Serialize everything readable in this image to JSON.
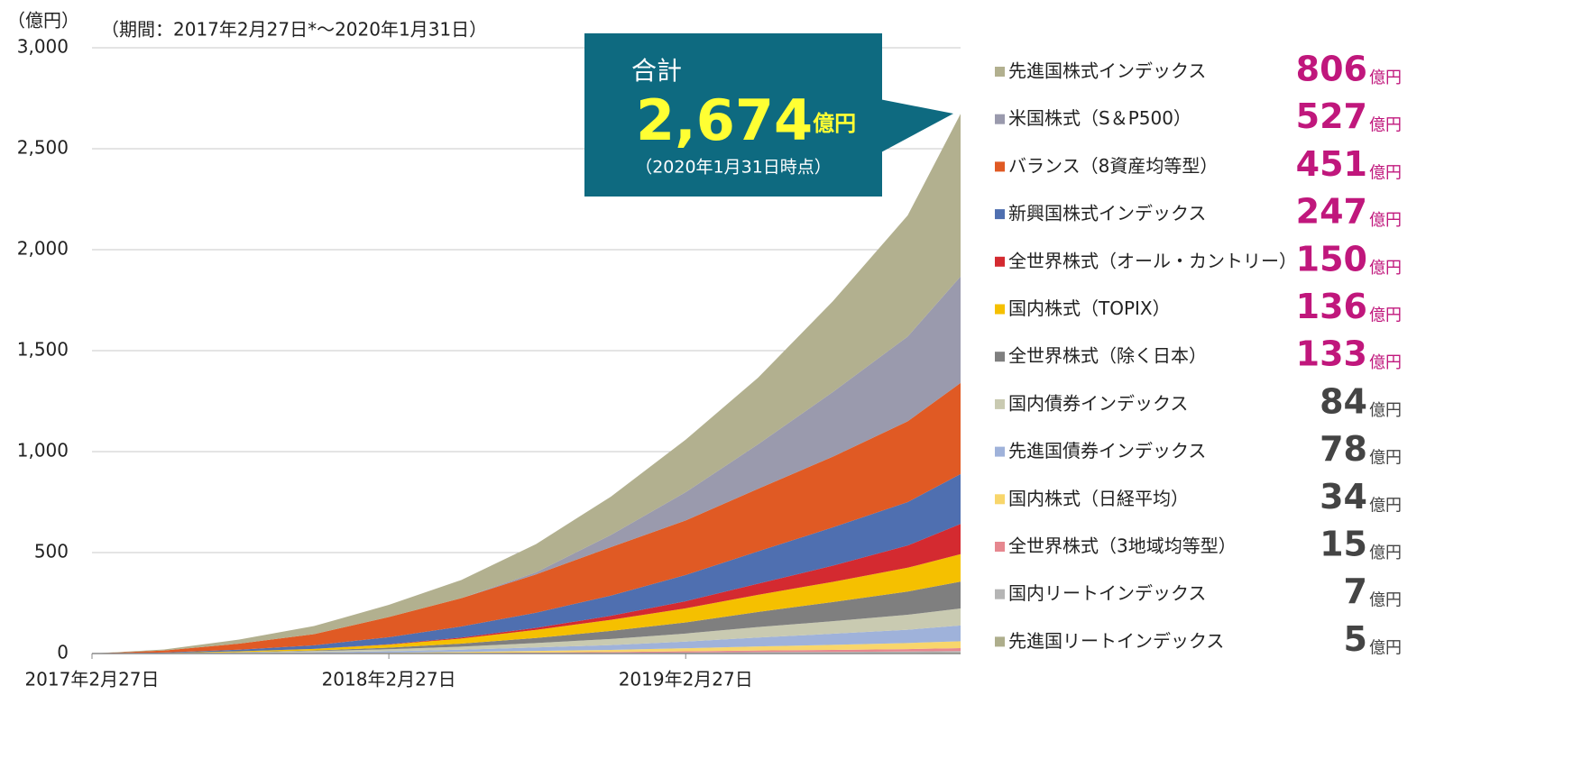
{
  "chart_data": {
    "type": "stacked_area",
    "y_axis_label": "（億円）",
    "subtitle": "（期間：2017年2月27日*～2020年1月31日）",
    "x": [
      "2017-02-27",
      "2017-05-27",
      "2017-08-27",
      "2017-11-27",
      "2018-02-27",
      "2018-05-27",
      "2018-08-27",
      "2018-11-27",
      "2019-02-27",
      "2019-05-27",
      "2019-08-27",
      "2019-11-27",
      "2020-01-31"
    ],
    "xlim": [
      "2017-02-27",
      "2020-01-31"
    ],
    "xticks": [
      {
        "value": "2017-02-27",
        "label": "2017年2月27日"
      },
      {
        "value": "2018-02-27",
        "label": "2018年2月27日"
      },
      {
        "value": "2019-02-27",
        "label": "2019年2月27日"
      }
    ],
    "ylim": [
      0,
      3000
    ],
    "yticks": [
      0,
      500,
      {
        "value": 1000,
        "label": "1,000"
      },
      {
        "value": 1500,
        "label": "1,500"
      },
      {
        "value": 2000,
        "label": "2,000"
      },
      {
        "value": 2500,
        "label": "2,500"
      },
      {
        "value": 3000,
        "label": "3,000"
      }
    ],
    "grid": true,
    "legend_unit": "億円",
    "annotation": {
      "title": "合計",
      "value": 2674,
      "value_label": "2,674",
      "unit": "億円",
      "note": "（2020年1月31日時点）"
    },
    "series": [
      {
        "name": "先進国株式インデックス",
        "color": "#b2b08f",
        "legend_value": 806,
        "legend_value_color": "#c0177c",
        "values": [
          0,
          5,
          20,
          40,
          60,
          90,
          140,
          190,
          260,
          330,
          450,
          600,
          806
        ]
      },
      {
        "name": "米国株式（S＆P500）",
        "color": "#9a9aad",
        "legend_value": 527,
        "legend_value_color": "#c0177c",
        "values": [
          0,
          0,
          0,
          0,
          0,
          0,
          10,
          60,
          140,
          220,
          320,
          420,
          527
        ]
      },
      {
        "name": "バランス（8資産均等型）",
        "color": "#e05a24",
        "legend_value": 451,
        "legend_value_color": "#c0177c",
        "values": [
          0,
          10,
          30,
          55,
          100,
          140,
          190,
          240,
          270,
          310,
          350,
          400,
          451
        ]
      },
      {
        "name": "新興国株式インデックス",
        "color": "#4f6fb0",
        "legend_value": 247,
        "legend_value_color": "#c0177c",
        "values": [
          0,
          2,
          8,
          18,
          35,
          55,
          75,
          100,
          130,
          160,
          190,
          215,
          247
        ]
      },
      {
        "name": "全世界株式（オール・カントリー）",
        "color": "#d42a30",
        "legend_value": 150,
        "legend_value_color": "#c0177c",
        "values": [
          0,
          0,
          0,
          0,
          2,
          5,
          10,
          20,
          35,
          55,
          80,
          110,
          150
        ]
      },
      {
        "name": "国内株式（TOPIX）",
        "color": "#f5c000",
        "legend_value": 136,
        "legend_value_color": "#c0177c",
        "values": [
          0,
          1,
          4,
          8,
          15,
          25,
          40,
          55,
          70,
          85,
          100,
          118,
          136
        ]
      },
      {
        "name": "全世界株式（除く日本）",
        "color": "#7f7f7f",
        "legend_value": 133,
        "legend_value_color": "#c0177c",
        "values": [
          0,
          0,
          1,
          3,
          8,
          15,
          25,
          40,
          55,
          75,
          95,
          115,
          133
        ]
      },
      {
        "name": "国内債券インデックス",
        "color": "#c9cab1",
        "legend_value": 84,
        "legend_value_color": "#444444",
        "values": [
          0,
          1,
          3,
          6,
          10,
          15,
          22,
          30,
          40,
          52,
          62,
          74,
          84
        ]
      },
      {
        "name": "先進国債券インデックス",
        "color": "#9fb2da",
        "legend_value": 78,
        "legend_value_color": "#444444",
        "values": [
          0,
          1,
          2,
          4,
          7,
          11,
          17,
          24,
          33,
          44,
          55,
          66,
          78
        ]
      },
      {
        "name": "国内株式（日経平均）",
        "color": "#f8d66b",
        "legend_value": 34,
        "legend_value_color": "#444444",
        "values": [
          0,
          0,
          1,
          2,
          3,
          5,
          8,
          11,
          15,
          20,
          25,
          30,
          34
        ]
      },
      {
        "name": "全世界株式（3地域均等型）",
        "color": "#e6878f",
        "legend_value": 15,
        "legend_value_color": "#444444",
        "values": [
          0,
          0,
          0,
          0,
          1,
          2,
          3,
          4,
          6,
          8,
          10,
          12,
          15
        ]
      },
      {
        "name": "国内リートインデックス",
        "color": "#b5b5b5",
        "legend_value": 7,
        "legend_value_color": "#444444",
        "values": [
          0,
          0,
          0,
          0,
          0,
          1,
          1,
          2,
          3,
          4,
          5,
          6,
          7
        ]
      },
      {
        "name": "先進国リートインデックス",
        "color": "#aeae8c",
        "legend_value": 5,
        "legend_value_color": "#444444",
        "values": [
          0,
          0,
          0,
          0,
          0,
          0,
          1,
          1,
          2,
          3,
          3,
          4,
          5
        ]
      }
    ]
  }
}
